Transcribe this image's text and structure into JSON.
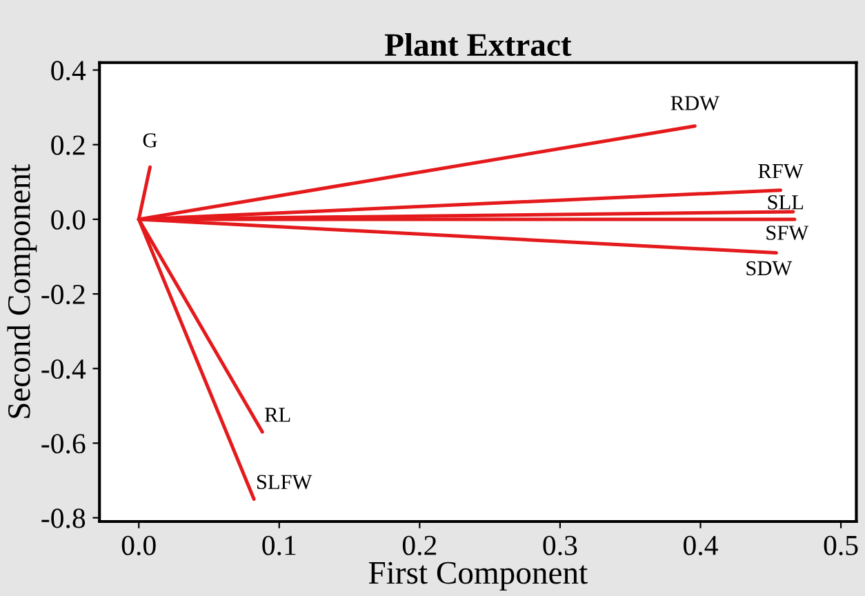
{
  "chart_data": {
    "type": "line",
    "title": "Plant Extract",
    "xlabel": "First Component",
    "ylabel": "Second Component",
    "xlim": [
      -0.028,
      0.511
    ],
    "ylim": [
      -0.81,
      0.42
    ],
    "xticks": [
      {
        "value": 0.0,
        "label": "0.0"
      },
      0.1,
      0.2,
      0.3,
      0.4,
      0.5
    ],
    "yticks": [
      {
        "value": -0.8,
        "label": "-0.8"
      },
      {
        "value": -0.6,
        "label": "-0.6"
      },
      {
        "value": -0.4,
        "label": "-0.4"
      },
      {
        "value": -0.2,
        "label": "-0.2"
      },
      {
        "value": 0.0,
        "label": "0.0"
      },
      0.2,
      0.4
    ],
    "grid": false,
    "legend": false,
    "marker": "none",
    "line_style": "solid",
    "series": [
      {
        "name": "G",
        "color": "#e41a1c",
        "x": [
          0,
          0.008
        ],
        "values": [
          0,
          0.14
        ]
      },
      {
        "name": "RDW",
        "color": "#e41a1c",
        "x": [
          0,
          0.396
        ],
        "values": [
          0,
          0.25
        ]
      },
      {
        "name": "RFW",
        "color": "#e41a1c",
        "x": [
          0,
          0.457
        ],
        "values": [
          0,
          0.078
        ]
      },
      {
        "name": "SLL",
        "color": "#e41a1c",
        "x": [
          0,
          0.466
        ],
        "values": [
          0,
          0.02
        ]
      },
      {
        "name": "SFW",
        "color": "#e41a1c",
        "x": [
          0,
          0.467
        ],
        "values": [
          0,
          0.0
        ]
      },
      {
        "name": "SDW",
        "color": "#e41a1c",
        "x": [
          0,
          0.454
        ],
        "values": [
          0,
          -0.09
        ]
      },
      {
        "name": "RL",
        "color": "#e41a1c",
        "x": [
          0,
          0.088
        ],
        "values": [
          0,
          -0.57
        ]
      },
      {
        "name": "SLFW",
        "color": "#e41a1c",
        "x": [
          0,
          0.082
        ],
        "values": [
          0,
          -0.75
        ]
      }
    ]
  }
}
